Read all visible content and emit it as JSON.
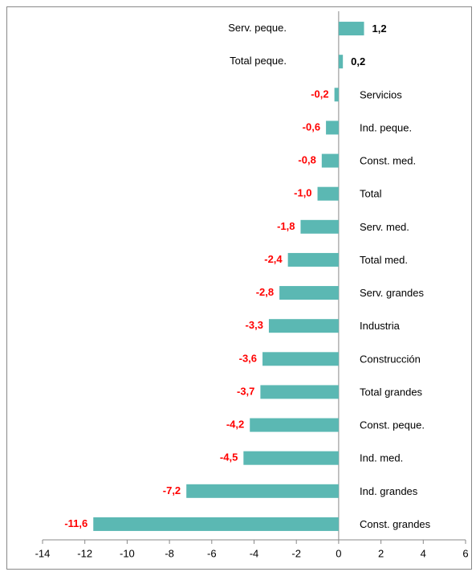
{
  "chart_data": {
    "type": "bar",
    "orientation": "horizontal",
    "categories": [
      "Serv. peque.",
      "Total peque.",
      "Servicios",
      "Ind. peque.",
      "Const. med.",
      "Total",
      "Serv. med.",
      "Total med.",
      "Serv. grandes",
      "Industria",
      "Construcción",
      "Total grandes",
      "Const. peque.",
      "Ind. med.",
      "Ind. grandes",
      "Const. grandes"
    ],
    "values": [
      1.2,
      0.2,
      -0.2,
      -0.6,
      -0.8,
      -1.0,
      -1.8,
      -2.4,
      -2.8,
      -3.3,
      -3.6,
      -3.7,
      -4.2,
      -4.5,
      -7.2,
      -11.6
    ],
    "value_labels": [
      "1,2",
      "0,2",
      "-0,2",
      "-0,6",
      "-0,8",
      "-1,0",
      "-1,8",
      "-2,4",
      "-2,8",
      "-3,3",
      "-3,6",
      "-3,7",
      "-4,2",
      "-4,5",
      "-7,2",
      "-11,6"
    ],
    "color": "#5bb8b3",
    "xlim": [
      -14,
      6
    ],
    "xticks": [
      -14,
      -12,
      -10,
      -8,
      -6,
      -4,
      -2,
      0,
      2,
      4,
      6
    ]
  }
}
